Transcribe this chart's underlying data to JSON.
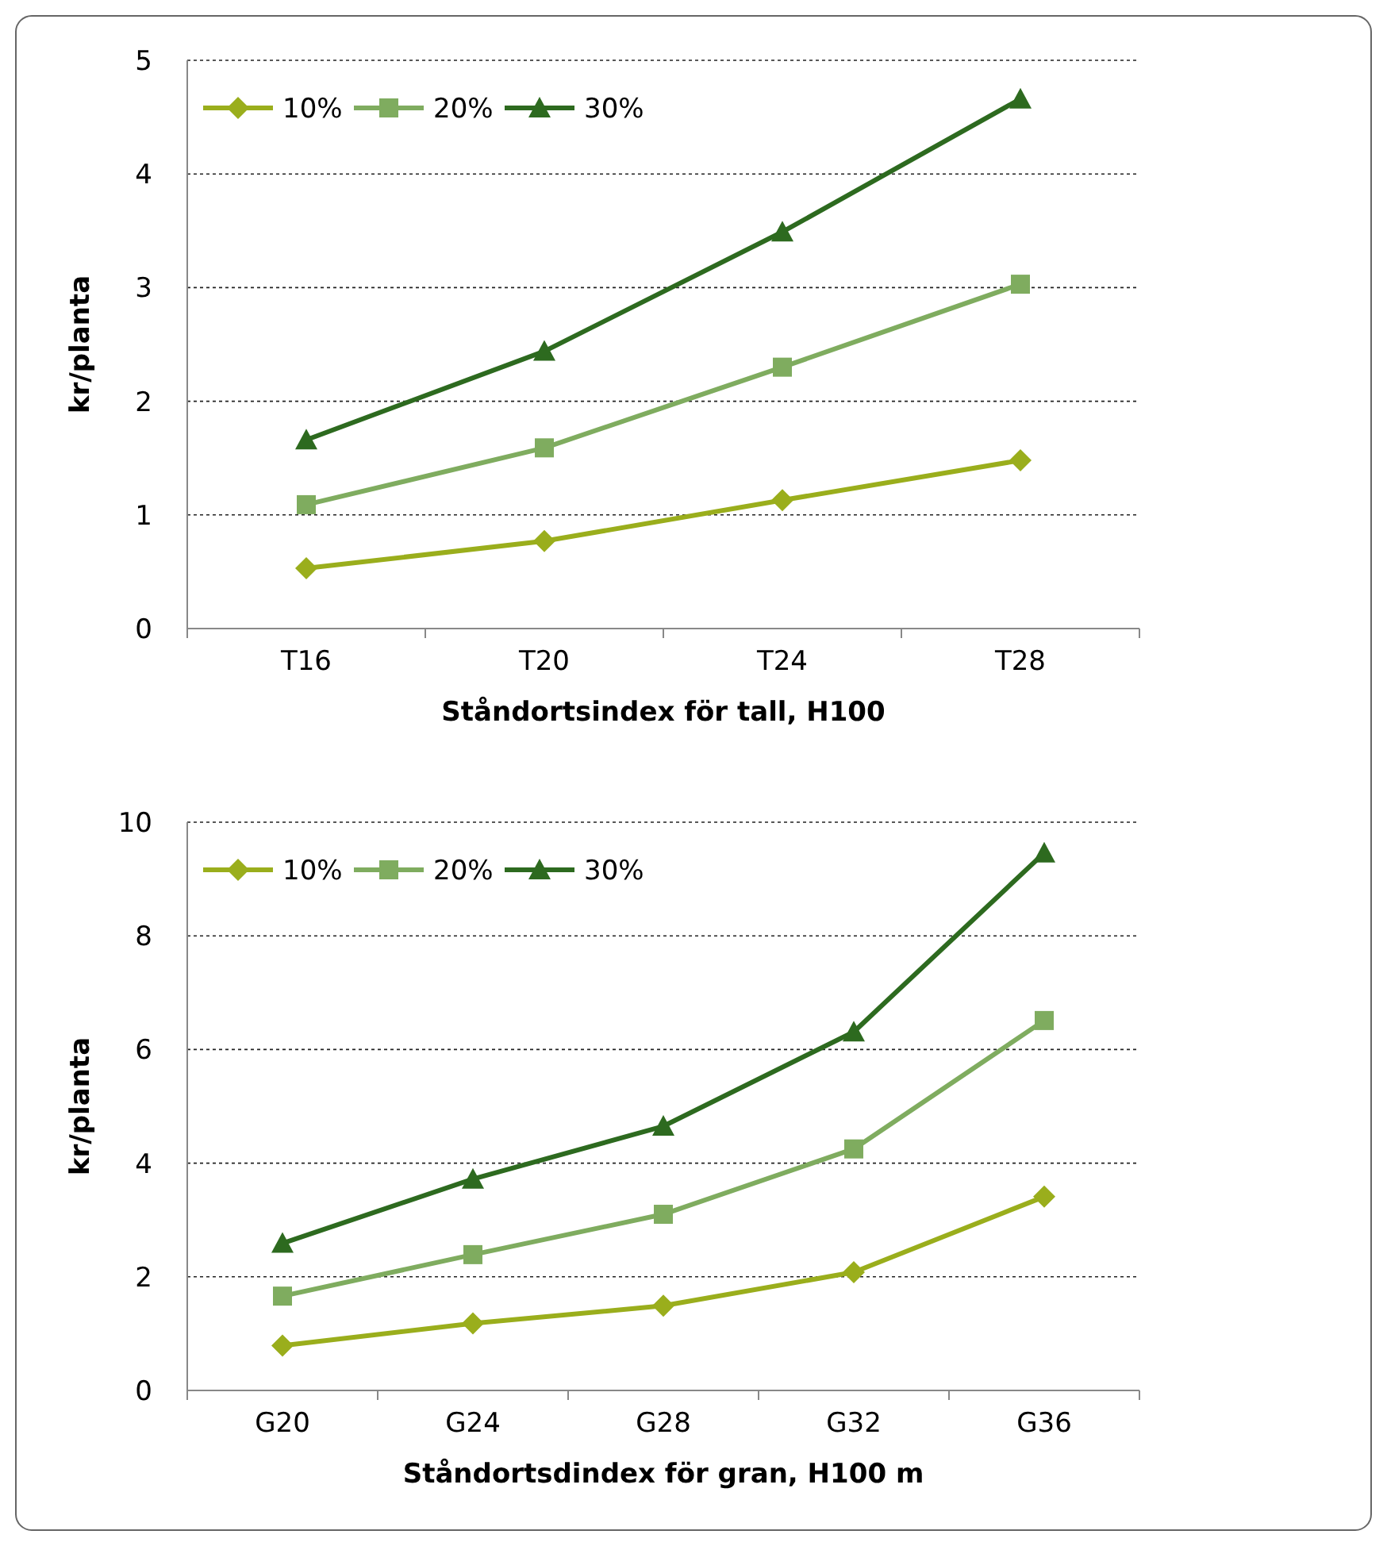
{
  "chart_data": [
    {
      "type": "line",
      "xlabel": "Ståndortsindex för tall, H100",
      "ylabel": "kr/planta",
      "categories": [
        "T16",
        "T20",
        "T24",
        "T28"
      ],
      "ylim": [
        0,
        5
      ],
      "yticks": [
        0,
        1,
        2,
        3,
        4,
        5
      ],
      "grid": "y",
      "legend": "top left",
      "line_style": "solid",
      "series": [
        {
          "name": "10%",
          "color": "#9aae1c",
          "marker": "diamond",
          "values": [
            0.53,
            0.77,
            1.13,
            1.48
          ]
        },
        {
          "name": "20%",
          "color": "#7fac5f",
          "marker": "square",
          "values": [
            1.09,
            1.59,
            2.3,
            3.03
          ]
        },
        {
          "name": "30%",
          "color": "#2d6a1f",
          "marker": "triangle",
          "values": [
            1.66,
            2.44,
            3.49,
            4.66
          ]
        }
      ]
    },
    {
      "type": "line",
      "xlabel": "Ståndortsdindex för gran, H100 m",
      "ylabel": "kr/planta",
      "categories": [
        "G20",
        "G24",
        "G28",
        "G32",
        "G36"
      ],
      "ylim": [
        0,
        10
      ],
      "yticks": [
        0,
        2,
        4,
        6,
        8,
        10
      ],
      "grid": "y",
      "legend": "top left",
      "line_style": "solid",
      "series": [
        {
          "name": "10%",
          "color": "#9aae1c",
          "marker": "diamond",
          "values": [
            0.79,
            1.18,
            1.49,
            2.08,
            3.41
          ]
        },
        {
          "name": "20%",
          "color": "#7fac5f",
          "marker": "square",
          "values": [
            1.66,
            2.39,
            3.1,
            4.25,
            6.51
          ]
        },
        {
          "name": "30%",
          "color": "#2d6a1f",
          "marker": "triangle",
          "values": [
            2.59,
            3.72,
            4.65,
            6.31,
            9.46
          ]
        }
      ]
    }
  ]
}
